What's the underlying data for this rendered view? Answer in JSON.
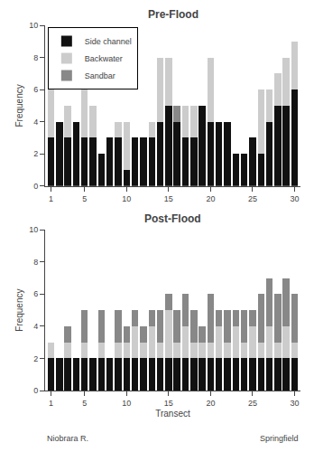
{
  "chart_data": [
    {
      "type": "bar",
      "title": "Pre-Flood",
      "ylabel": "Frequency",
      "x": [
        1,
        2,
        3,
        4,
        5,
        6,
        7,
        8,
        9,
        10,
        11,
        12,
        13,
        14,
        15,
        16,
        17,
        18,
        19,
        20,
        21,
        22,
        23,
        24,
        25,
        26,
        27,
        28,
        29,
        30
      ],
      "series": [
        {
          "name": "Side channel",
          "color": "#111111",
          "values": [
            3,
            4,
            3,
            4,
            3,
            3,
            2,
            3,
            3,
            1,
            3,
            3,
            3,
            4,
            5,
            4,
            3,
            3,
            5,
            4,
            4,
            4,
            2,
            2,
            3,
            2,
            4,
            5,
            5,
            6
          ]
        },
        {
          "name": "Backwater",
          "color": "#cccccc",
          "values": [
            3,
            0,
            2,
            0,
            3,
            2,
            0,
            0,
            1,
            3,
            0,
            0,
            1,
            4,
            3,
            0,
            2,
            2,
            0,
            4,
            0,
            0,
            0,
            0,
            0,
            4,
            2,
            2,
            3,
            3
          ]
        },
        {
          "name": "Sandbar",
          "color": "#888888",
          "values": [
            0,
            0,
            0,
            0,
            0,
            0,
            0,
            0,
            0,
            0,
            0,
            0,
            0,
            0,
            0,
            1,
            0,
            0,
            0,
            0,
            0,
            0,
            0,
            0,
            0,
            0,
            0,
            0,
            0,
            0
          ]
        }
      ],
      "xlim": [
        0.3,
        30.7
      ],
      "xticks": [
        1,
        5,
        10,
        15,
        20,
        25,
        30
      ],
      "ylim": [
        0,
        10
      ],
      "yticks": [
        0,
        2,
        4,
        6,
        8,
        10
      ],
      "stacked": true,
      "grid": false,
      "legend": "upper left"
    },
    {
      "type": "bar",
      "title": "Post-Flood",
      "ylabel": "Frequency",
      "xlabel": "Transect",
      "x": [
        1,
        2,
        3,
        4,
        5,
        6,
        7,
        8,
        9,
        10,
        11,
        12,
        13,
        14,
        15,
        16,
        17,
        18,
        19,
        20,
        21,
        22,
        23,
        24,
        25,
        26,
        27,
        28,
        29,
        30
      ],
      "series": [
        {
          "name": "Side channel",
          "color": "#111111",
          "values": [
            2,
            2,
            2,
            2,
            2,
            2,
            2,
            2,
            2,
            2,
            2,
            2,
            2,
            2,
            2,
            2,
            2,
            2,
            2,
            2,
            2,
            2,
            2,
            2,
            2,
            2,
            2,
            2,
            2,
            2
          ]
        },
        {
          "name": "Backwater",
          "color": "#cccccc",
          "values": [
            1,
            0,
            1,
            0,
            1,
            0,
            1,
            0,
            1,
            1,
            2,
            1,
            2,
            1,
            3,
            1,
            2,
            1,
            1,
            1,
            2,
            1,
            2,
            1,
            2,
            1,
            2,
            1,
            2,
            1
          ]
        },
        {
          "name": "Sandbar",
          "color": "#888888",
          "values": [
            0,
            0,
            1,
            0,
            2,
            0,
            2,
            0,
            2,
            1,
            1,
            1,
            1,
            2,
            1,
            2,
            2,
            2,
            1,
            3,
            1,
            2,
            1,
            2,
            1,
            3,
            3,
            3,
            3,
            3
          ]
        }
      ],
      "xlim": [
        0.3,
        30.7
      ],
      "xticks": [
        1,
        5,
        10,
        15,
        20,
        25,
        30
      ],
      "ylim": [
        0,
        10
      ],
      "yticks": [
        0,
        2,
        4,
        6,
        8,
        10
      ],
      "stacked": true,
      "grid": false,
      "annotations": [
        "Niobrara R.",
        "Springfield"
      ]
    }
  ]
}
